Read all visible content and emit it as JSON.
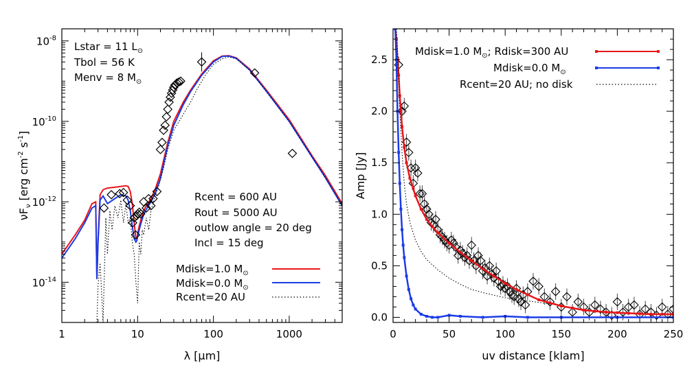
{
  "colors": {
    "red": "#e8161b",
    "blue": "#1a3be6",
    "black": "#000000",
    "grey": "#6a6a6a"
  },
  "chart_data": [
    {
      "type": "line",
      "xscale": "log",
      "yscale": "log",
      "xlabel": "λ [μm]",
      "ylabel": "νF",
      "ylabel_sub": "ν",
      "ylabel_units": " [erg cm",
      "ylabel_exp1": "-2",
      "ylabel_mid": " s",
      "ylabel_exp2": "-1",
      "ylabel_end": "]",
      "xlim": [
        1,
        5000
      ],
      "ylim": [
        1e-15,
        2e-08
      ],
      "x_ticks": [
        {
          "value": 1,
          "label": "1"
        },
        {
          "value": 10,
          "label": "10"
        },
        {
          "value": 100,
          "label": "100"
        },
        {
          "value": 1000,
          "label": "1000"
        }
      ],
      "y_ticks": [
        {
          "value": 1e-14,
          "exp": "-14"
        },
        {
          "value": 1e-12,
          "exp": "-12"
        },
        {
          "value": 1e-10,
          "exp": "-10"
        },
        {
          "value": 1e-08,
          "exp": "-8"
        }
      ],
      "y_tick_base": "10",
      "annotations_top": {
        "lstar": "Lstar = 11 L",
        "tbol": "Tbol = 56 K",
        "menv": "Menv = 8 M"
      },
      "annotations_mid": {
        "rcent": "Rcent = 600 AU",
        "rout": "Rout = 5000 AU",
        "outflow": "outlow angle = 20 deg",
        "incl": "Incl = 15 deg"
      },
      "legend": [
        {
          "label": "Mdisk=1.0 M",
          "sun": true,
          "color": "#e8161b",
          "style": "solid"
        },
        {
          "label": "Mdisk=0.0 M",
          "sun": true,
          "color": "#1a3be6",
          "style": "solid"
        },
        {
          "label": "Rcent=20 AU",
          "sun": false,
          "color": "#000000",
          "style": "dotted"
        }
      ],
      "series": [
        {
          "name": "Mdisk=1.0 M",
          "color": "#e8161b",
          "x": [
            1,
            1.5,
            2,
            2.5,
            2.8,
            2.9,
            3.0,
            3.2,
            3.5,
            4,
            5,
            6,
            7,
            7.5,
            8,
            8.5,
            9,
            9.5,
            9.8,
            10,
            10.5,
            11,
            12,
            13,
            15,
            17,
            20,
            25,
            30,
            40,
            50,
            70,
            100,
            130,
            160,
            200,
            300,
            500,
            1000,
            2000,
            3000,
            5000
          ],
          "y": [
            5e-14,
            1.5e-13,
            3.5e-13,
            9e-13,
            1e-12,
            1.2e-14,
            1.1e-13,
            1.5e-12,
            2e-12,
            2.2e-12,
            2.3e-12,
            2.4e-12,
            2.5e-12,
            2.4e-12,
            1.8e-12,
            9e-13,
            3e-13,
            1.2e-13,
            1.2e-13,
            1.6e-13,
            2.5e-13,
            3.5e-13,
            6e-13,
            8e-13,
            1.2e-12,
            2e-12,
            5e-12,
            3e-11,
            1e-10,
            3e-10,
            6e-10,
            1.5e-09,
            3.2e-09,
            4.2e-09,
            4.3e-09,
            3.8e-09,
            2e-09,
            6e-10,
            1.1e-10,
            1.4e-11,
            4.5e-12,
            9e-13
          ]
        },
        {
          "name": "Mdisk=0.0 M",
          "color": "#1a3be6",
          "x": [
            1,
            1.5,
            2,
            2.5,
            2.8,
            2.9,
            3.0,
            3.2,
            3.5,
            4,
            5,
            6,
            7,
            7.5,
            8,
            8.5,
            9,
            9.5,
            9.8,
            10,
            10.5,
            11,
            12,
            13,
            15,
            17,
            20,
            25,
            30,
            40,
            50,
            70,
            100,
            130,
            160,
            200,
            300,
            500,
            1000,
            2000,
            3000,
            5000
          ],
          "y": [
            4e-14,
            1.2e-13,
            3e-13,
            7e-13,
            8e-13,
            1.2e-14,
            9e-14,
            1.1e-12,
            1.4e-12,
            9e-13,
            1.2e-12,
            1.5e-12,
            1.4e-12,
            1.1e-12,
            6e-13,
            2.5e-13,
            1.2e-13,
            1e-13,
            1.1e-13,
            1.4e-13,
            2e-13,
            2.8e-13,
            4.8e-13,
            6.5e-13,
            1e-12,
            1.6e-12,
            3.8e-12,
            2.5e-11,
            8e-11,
            2.6e-10,
            5.5e-10,
            1.4e-09,
            3e-09,
            4.1e-09,
            4.2e-09,
            3.7e-09,
            1.9e-09,
            5.6e-10,
            1e-10,
            1.3e-11,
            4e-12,
            8e-13
          ]
        },
        {
          "name": "Rcent=20 AU",
          "color": "#000000",
          "dashed": true,
          "x": [
            2.9,
            3.0,
            3.2,
            3.5,
            3.8,
            4.0,
            4.3,
            4.6,
            5,
            5.5,
            6,
            6.5,
            7,
            7.5,
            8,
            8.5,
            9,
            9.5,
            10,
            10.5,
            11,
            11.5,
            12,
            13,
            14,
            15,
            17,
            19,
            22,
            25,
            30,
            40,
            50,
            60,
            80,
            100,
            130,
            160,
            200,
            300,
            500,
            1000,
            2000,
            3000,
            5000
          ],
          "y": [
            1e-15,
            8e-15,
            3e-14,
            1e-15,
            4e-13,
            5e-14,
            6e-13,
            2e-13,
            8e-13,
            4e-13,
            1.1e-12,
            3e-13,
            9e-13,
            3e-13,
            4e-13,
            1e-13,
            5e-14,
            1e-14,
            3e-15,
            1e-13,
            5e-14,
            2e-13,
            1.5e-13,
            4e-13,
            2e-13,
            6e-13,
            1.4e-12,
            2.5e-12,
            7e-12,
            2e-11,
            6e-11,
            1.5e-10,
            3e-10,
            6e-10,
            1.5e-09,
            2.6e-09,
            3.6e-09,
            4e-09,
            3.6e-09,
            1.9e-09,
            5.5e-10,
            1e-10,
            1.3e-11,
            4e-12,
            8e-13
          ]
        }
      ],
      "observations": {
        "x": [
          3.6,
          4.5,
          5.8,
          6.5,
          7.3,
          8,
          8.6,
          9,
          9.4,
          9.7,
          10,
          10.5,
          11,
          12,
          13,
          14,
          15,
          16,
          18,
          20,
          21,
          22,
          23,
          24,
          25,
          26,
          27,
          28,
          29,
          30,
          31,
          33,
          35,
          37,
          70,
          350,
          1100
        ],
        "y": [
          7e-13,
          1.5e-12,
          1.6e-12,
          1.7e-12,
          1.1e-12,
          8e-13,
          3e-13,
          4e-13,
          1.5e-13,
          4.5e-13,
          5e-13,
          5.5e-13,
          5e-13,
          1e-12,
          7e-13,
          1.2e-12,
          8e-13,
          1.2e-12,
          1.8e-12,
          2e-11,
          3e-11,
          6e-11,
          8e-11,
          1.3e-10,
          2e-10,
          3e-10,
          4e-10,
          5e-10,
          6e-10,
          7e-10,
          8e-10,
          9e-10,
          9.5e-10,
          1e-09,
          3e-09,
          1.6e-09,
          1.6e-11
        ]
      }
    },
    {
      "type": "scatter",
      "xlabel": "uv distance [klam]",
      "ylabel": "Amp [Jy]",
      "xlim": [
        0,
        250
      ],
      "ylim": [
        -0.05,
        2.8
      ],
      "x_ticks": [
        {
          "value": 0,
          "label": "0"
        },
        {
          "value": 50,
          "label": "50"
        },
        {
          "value": 100,
          "label": "100"
        },
        {
          "value": 150,
          "label": "150"
        },
        {
          "value": 200,
          "label": "200"
        },
        {
          "value": 250,
          "label": "250"
        }
      ],
      "y_ticks": [
        {
          "value": 0,
          "label": "0.0"
        },
        {
          "value": 0.5,
          "label": "0.5"
        },
        {
          "value": 1.0,
          "label": "1.0"
        },
        {
          "value": 1.5,
          "label": "1.5"
        },
        {
          "value": 2.0,
          "label": "2.0"
        },
        {
          "value": 2.5,
          "label": "2.5"
        }
      ],
      "legend": [
        {
          "label": "Mdisk=1.0 M",
          "sun": true,
          "suffix": "; Rdisk=300 AU",
          "color": "#e8161b",
          "style": "solid-marker"
        },
        {
          "label": "Mdisk=0.0 M",
          "sun": true,
          "suffix": "",
          "color": "#1a3be6",
          "style": "solid-marker"
        },
        {
          "label": "Rcent=20 AU; no disk",
          "sun": false,
          "suffix": "",
          "color": "#000000",
          "style": "dotted"
        }
      ],
      "series": [
        {
          "name": "Mdisk=1.0 M",
          "color": "#e8161b",
          "x": [
            2,
            3,
            4,
            5,
            6,
            7,
            8,
            10,
            12,
            15,
            18,
            20,
            25,
            30,
            35,
            40,
            50,
            60,
            70,
            80,
            90,
            100,
            110,
            120,
            130,
            140,
            150,
            160,
            170,
            180,
            190,
            200,
            210,
            220,
            230,
            240,
            250
          ],
          "y": [
            2.8,
            2.7,
            2.5,
            2.35,
            2.15,
            2.0,
            1.85,
            1.65,
            1.5,
            1.35,
            1.25,
            1.18,
            1.05,
            0.95,
            0.88,
            0.82,
            0.72,
            0.63,
            0.55,
            0.47,
            0.4,
            0.33,
            0.27,
            0.22,
            0.17,
            0.14,
            0.11,
            0.09,
            0.07,
            0.06,
            0.05,
            0.045,
            0.04,
            0.035,
            0.03,
            0.03,
            0.03
          ]
        },
        {
          "name": "Mdisk=0.0 M",
          "color": "#1a3be6",
          "x": [
            2,
            3,
            4,
            5,
            6,
            7,
            8,
            9,
            10,
            12,
            14,
            16,
            18,
            20,
            25,
            30,
            35,
            40,
            50,
            60,
            80,
            100,
            120,
            150,
            200,
            250
          ],
          "y": [
            2.8,
            2.5,
            2.0,
            1.6,
            1.3,
            1.05,
            0.85,
            0.7,
            0.58,
            0.4,
            0.27,
            0.18,
            0.12,
            0.08,
            0.03,
            0.01,
            0.0,
            0.0,
            0.02,
            0.01,
            0.0,
            0.01,
            0.0,
            0.0,
            0.0,
            0.0
          ]
        },
        {
          "name": "Rcent=20 AU; no disk",
          "color": "#000000",
          "dashed": true,
          "x": [
            3,
            4,
            5,
            6,
            7,
            8,
            10,
            12,
            15,
            20,
            25,
            30,
            40,
            50,
            60,
            70,
            80,
            100,
            120,
            140
          ],
          "y": [
            2.8,
            2.6,
            2.3,
            2.0,
            1.8,
            1.6,
            1.3,
            1.1,
            0.92,
            0.75,
            0.64,
            0.56,
            0.46,
            0.38,
            0.32,
            0.27,
            0.24,
            0.19,
            0.16,
            0.13
          ]
        }
      ],
      "observations": {
        "x": [
          5,
          8,
          10,
          12,
          14,
          16,
          18,
          20,
          22,
          24,
          26,
          28,
          30,
          32,
          34,
          36,
          38,
          40,
          42,
          44,
          46,
          48,
          50,
          52,
          54,
          56,
          58,
          60,
          62,
          64,
          66,
          68,
          70,
          72,
          74,
          76,
          78,
          80,
          82,
          84,
          86,
          88,
          90,
          92,
          94,
          96,
          98,
          100,
          102,
          104,
          106,
          108,
          110,
          112,
          114,
          116,
          118,
          120,
          125,
          130,
          135,
          140,
          145,
          150,
          155,
          160,
          165,
          170,
          175,
          180,
          185,
          190,
          195,
          200,
          205,
          210,
          215,
          220,
          225,
          230,
          235,
          240,
          245,
          250
        ],
        "y": [
          2.45,
          2.0,
          2.05,
          1.7,
          1.6,
          1.45,
          1.3,
          1.45,
          1.4,
          1.2,
          1.2,
          1.1,
          1.05,
          1.0,
          0.92,
          0.9,
          0.95,
          0.85,
          0.8,
          0.78,
          0.75,
          0.72,
          0.7,
          0.75,
          0.72,
          0.68,
          0.6,
          0.65,
          0.62,
          0.58,
          0.6,
          0.55,
          0.7,
          0.55,
          0.5,
          0.6,
          0.55,
          0.45,
          0.48,
          0.4,
          0.5,
          0.42,
          0.38,
          0.45,
          0.35,
          0.3,
          0.32,
          0.28,
          0.3,
          0.25,
          0.22,
          0.2,
          0.28,
          0.18,
          0.15,
          0.22,
          0.12,
          0.25,
          0.35,
          0.3,
          0.2,
          0.15,
          0.25,
          0.1,
          0.2,
          0.05,
          0.15,
          0.1,
          0.05,
          0.12,
          0.08,
          0.05,
          0.02,
          0.15,
          0.05,
          0.1,
          0.12,
          0.03,
          0.08,
          0.05,
          0.02,
          0.1,
          0.03,
          0.08
        ]
      }
    }
  ]
}
